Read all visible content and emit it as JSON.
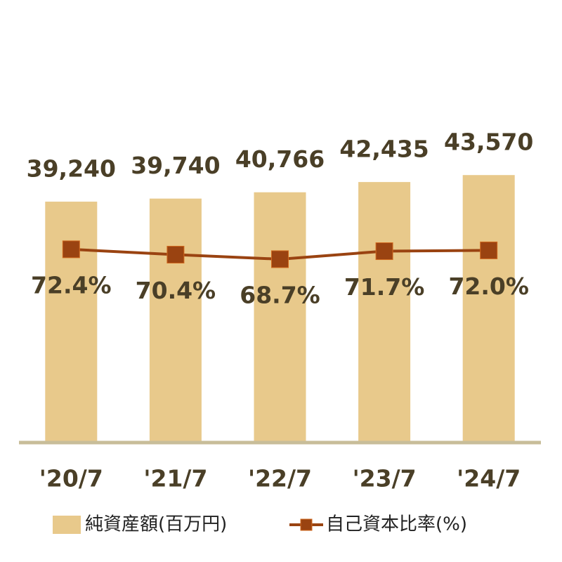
{
  "chart_data": {
    "type": "bar_line",
    "categories": [
      "'20/7",
      "'21/7",
      "'22/7",
      "'23/7",
      "'24/7"
    ],
    "series": [
      {
        "name": "純資産額(百万円)",
        "type": "bar",
        "color": "#e8c98b",
        "values": [
          39240,
          39740,
          40766,
          42435,
          43570
        ],
        "value_labels": [
          "39,240",
          "39,740",
          "40,766",
          "42,435",
          "43,570"
        ]
      },
      {
        "name": "自己資本比率(%)",
        "type": "line",
        "axis": "y2",
        "color": "#9a4311",
        "values": [
          72.4,
          70.4,
          68.7,
          71.7,
          72.0
        ],
        "value_labels": [
          "72.4%",
          "70.4%",
          "68.7%",
          "71.7%",
          "72.0%"
        ]
      }
    ],
    "ylim": [
      0,
      50000
    ],
    "y2lim": [
      0,
      115
    ],
    "legend": "bottom"
  }
}
